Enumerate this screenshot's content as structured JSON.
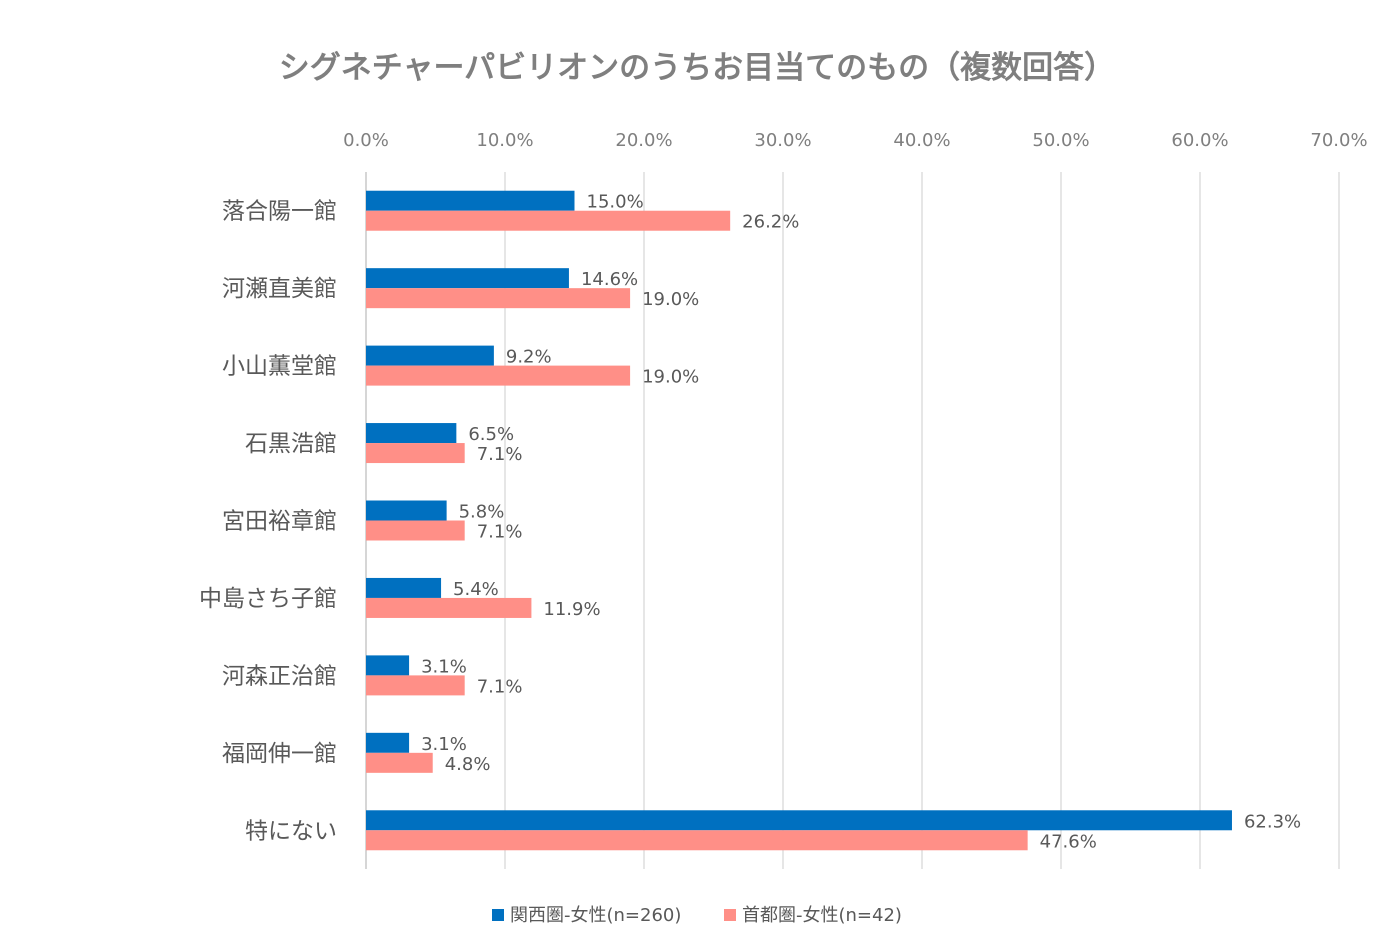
{
  "chart_data": {
    "type": "bar",
    "orientation": "horizontal",
    "title": "シグネチャーパビリオンのうちお目当てのもの（複数回答）",
    "categories": [
      "落合陽一館",
      "河瀬直美館",
      "小山薫堂館",
      "石黒浩館",
      "宮田裕章館",
      "中島さち子館",
      "河森正治館",
      "福岡伸一館",
      "特にない"
    ],
    "series": [
      {
        "name": "関西圏-女性(n=260)",
        "color": "#0070c0",
        "values": [
          15.0,
          14.6,
          9.2,
          6.5,
          5.8,
          5.4,
          3.1,
          3.1,
          62.3
        ],
        "labels": [
          "15.0%",
          "14.6%",
          "9.2%",
          "6.5%",
          "5.8%",
          "5.4%",
          "3.1%",
          "3.1%",
          "62.3%"
        ]
      },
      {
        "name": "首都圏-女性(n=42)",
        "color": "#ff8f87",
        "values": [
          26.2,
          19.0,
          19.0,
          7.1,
          7.1,
          11.9,
          7.1,
          4.8,
          47.6
        ],
        "labels": [
          "26.2%",
          "19.0%",
          "19.0%",
          "7.1%",
          "7.1%",
          "11.9%",
          "7.1%",
          "4.8%",
          "47.6%"
        ]
      }
    ],
    "xlim": [
      0,
      70
    ],
    "x_ticks": [
      "0.0%",
      "10.0%",
      "20.0%",
      "30.0%",
      "40.0%",
      "50.0%",
      "60.0%",
      "70.0%"
    ],
    "axis_position": "top",
    "grid": true,
    "legend_position": "bottom"
  }
}
